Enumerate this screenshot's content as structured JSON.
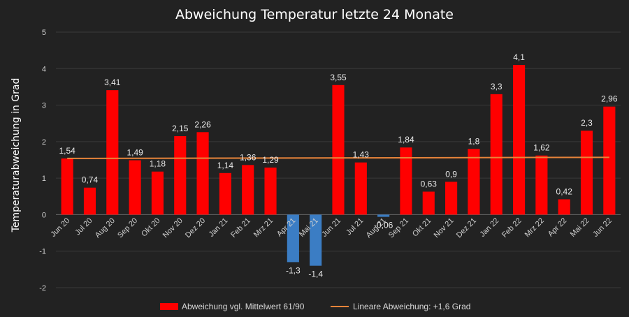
{
  "chart_data": {
    "type": "bar",
    "title": "Abweichung Temperatur letzte 24 Monate",
    "ylabel": "Temperaturabweichung in Grad",
    "xlabel": "",
    "ylim": [
      -2,
      5
    ],
    "yticks": [
      -2,
      -1,
      0,
      1,
      2,
      3,
      4,
      5
    ],
    "grid": true,
    "legend_position": "bottom",
    "categories": [
      "Jun 20",
      "Jul 20",
      "Aug 20",
      "Sep 20",
      "Okt 20",
      "Nov 20",
      "Dez 20",
      "Jan 21",
      "Feb 21",
      "Mrz 21",
      "Apr 21",
      "Mai 21",
      "Jun 21",
      "Jul 21",
      "Aug 21",
      "Sep 21",
      "Okt 21",
      "Nov 21",
      "Dez 21",
      "Jan 22",
      "Feb 22",
      "Mrz 22",
      "Apr 22",
      "Mai 22",
      "Jun 22"
    ],
    "series": [
      {
        "name": "Abweichung vgl. Mittelwert 61/90",
        "values": [
          1.54,
          0.74,
          3.41,
          1.49,
          1.18,
          2.15,
          2.26,
          1.14,
          1.36,
          1.29,
          -1.3,
          -1.4,
          3.55,
          1.43,
          -0.06,
          1.84,
          0.63,
          0.9,
          1.8,
          3.3,
          4.1,
          1.62,
          0.42,
          2.3,
          2.96
        ],
        "labels": [
          "1,54",
          "0,74",
          "3,41",
          "1,49",
          "1,18",
          "2,15",
          "2,26",
          "1,14",
          "1,36",
          "1,29",
          "-1,3",
          "-1,4",
          "3,55",
          "1,43",
          "-0,06",
          "1,84",
          "0,63",
          "0,9",
          "1,8",
          "3,3",
          "4,1",
          "1,62",
          "0,42",
          "2,3",
          "2,96"
        ],
        "positive_color": "#ff0000",
        "negative_color": "#3b7dc4"
      }
    ],
    "trendline": {
      "name": "Lineare Abweichung: +1,6 Grad",
      "start": 1.54,
      "end": 1.57,
      "color": "#e8843a"
    }
  }
}
